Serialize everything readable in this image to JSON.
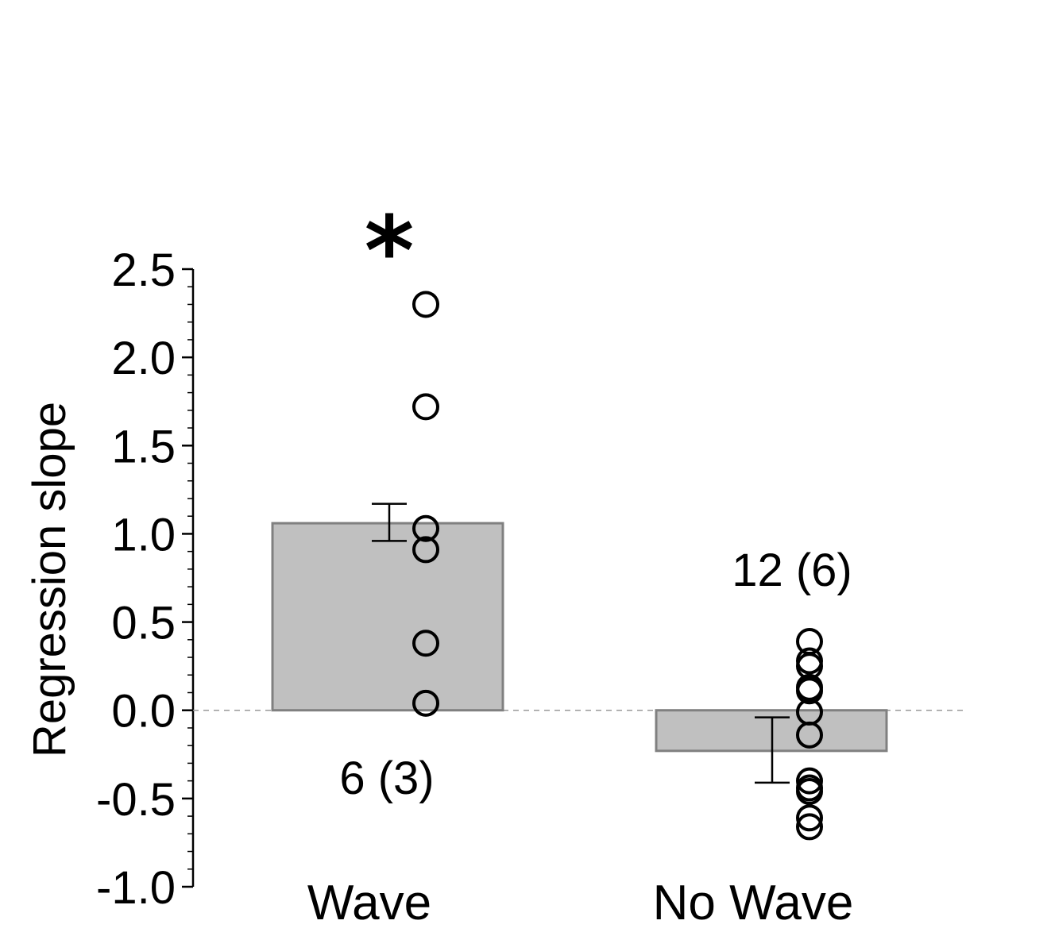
{
  "chart_data": {
    "type": "bar",
    "ylabel": "Regression slope",
    "ylim": [
      -1.0,
      2.5
    ],
    "yticks": [
      "-1.0",
      "-0.5",
      "0.0",
      "0.5",
      "1.0",
      "1.5",
      "2.0",
      "2.5"
    ],
    "categories": [
      "Wave",
      "No Wave"
    ],
    "values": [
      1.06,
      -0.23
    ],
    "error_low": [
      0.96,
      -0.41
    ],
    "error_high": [
      1.17,
      -0.04
    ],
    "zero_line": "dashed",
    "annotations": [
      "*",
      "6 (3)",
      "12 (6)"
    ],
    "points": [
      [
        2.3,
        1.72,
        1.03,
        0.91,
        0.38,
        0.04
      ],
      [
        0.39,
        0.28,
        0.25,
        0.13,
        0.11,
        -0.01,
        -0.14,
        -0.4,
        -0.46,
        -0.61,
        -0.66,
        -0.44
      ]
    ],
    "colors": {
      "bar_fill": "#c0c0c0",
      "bar_stroke": "#808080",
      "axis": "#000000",
      "zero_line": "#999999"
    }
  }
}
